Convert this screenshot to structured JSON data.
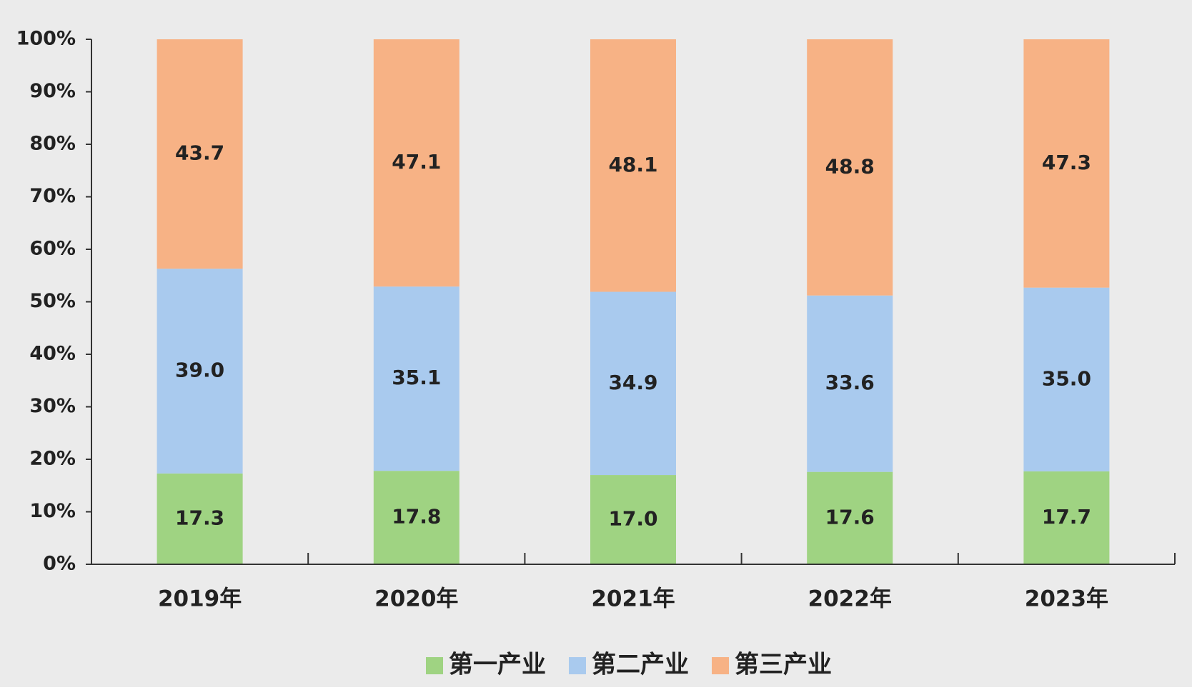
{
  "chart_data": {
    "type": "stacked_bar",
    "categories": [
      "2019年",
      "2020年",
      "2021年",
      "2022年",
      "2023年"
    ],
    "series": [
      {
        "name": "第一产业",
        "color": "#9fd382",
        "values": [
          17.3,
          17.8,
          17.0,
          17.6,
          17.7
        ],
        "value_labels": [
          "17.3",
          "17.8",
          "17.0",
          "17.6",
          "17.7"
        ]
      },
      {
        "name": "第二产业",
        "color": "#a9caee",
        "values": [
          39.0,
          35.1,
          34.9,
          33.6,
          35.0
        ],
        "value_labels": [
          "39.0",
          "35.1",
          "34.9",
          "33.6",
          "35.0"
        ]
      },
      {
        "name": "第三产业",
        "color": "#f7b285",
        "values": [
          43.7,
          47.1,
          48.1,
          48.8,
          47.3
        ],
        "value_labels": [
          "43.7",
          "47.1",
          "48.1",
          "48.8",
          "47.3"
        ]
      }
    ],
    "ylim": [
      0,
      100
    ],
    "yticks": [
      {
        "value": 0,
        "label": "0%"
      },
      {
        "value": 10,
        "label": "10%"
      },
      {
        "value": 20,
        "label": "20%"
      },
      {
        "value": 30,
        "label": "30%"
      },
      {
        "value": 40,
        "label": "40%"
      },
      {
        "value": 50,
        "label": "50%"
      },
      {
        "value": 60,
        "label": "60%"
      },
      {
        "value": 70,
        "label": "70%"
      },
      {
        "value": 80,
        "label": "80%"
      },
      {
        "value": 90,
        "label": "90%"
      },
      {
        "value": 100,
        "label": "100%"
      }
    ],
    "legend": "bottom"
  }
}
